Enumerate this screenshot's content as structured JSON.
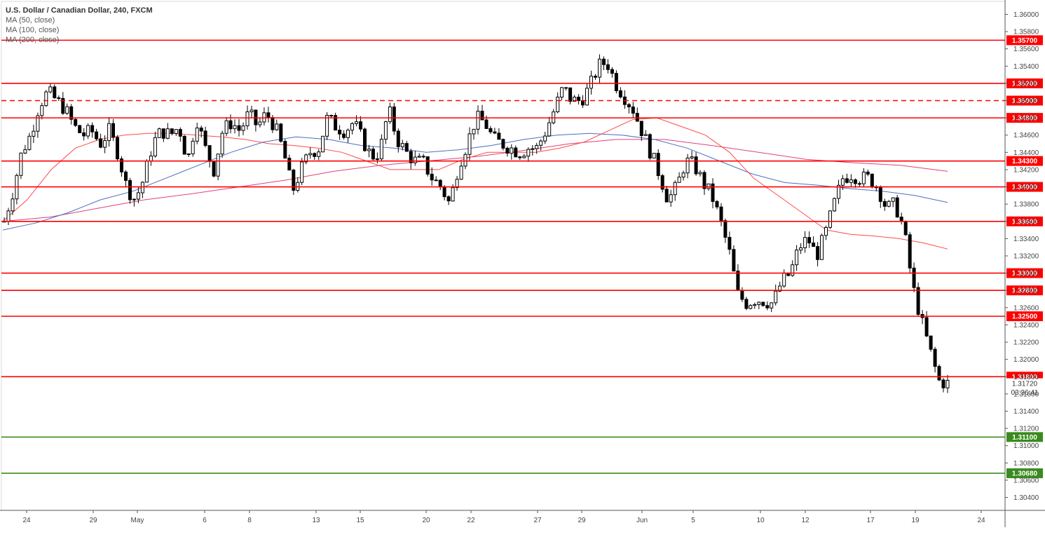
{
  "legend": {
    "title": "U.S. Dollar / Canadian Dollar, 240, FXCM",
    "ma50": "MA (50, close)",
    "ma100": "MA (100, close)",
    "ma200": "MA (200, close)"
  },
  "countdown": "03:36:41",
  "colors": {
    "resistance": "#ff0000",
    "support": "#3a8b1e",
    "ma50": "#ff4a4a",
    "ma100": "#4a6fbf",
    "ma200": "#e0407a",
    "candle": "#000000",
    "axis_text": "#444444"
  },
  "chart_data": {
    "type": "candlestick",
    "symbol": "U.S. Dollar / Canadian Dollar",
    "interval": "240",
    "source": "FXCM",
    "ylim": [
      1.3025,
      1.3615
    ],
    "y_ticks": [
      "1.36000",
      "1.35800",
      "1.35600",
      "1.35400",
      "1.35200",
      "1.35000",
      "1.34800",
      "1.34600",
      "1.34400",
      "1.34200",
      "1.34000",
      "1.33800",
      "1.33600",
      "1.33400",
      "1.33200",
      "1.33000",
      "1.32800",
      "1.32600",
      "1.32400",
      "1.32200",
      "1.32000",
      "1.31800",
      "1.31600",
      "1.31400",
      "1.31200",
      "1.31000",
      "1.30800",
      "1.30600",
      "1.30400"
    ],
    "x_ticks": [
      "24",
      "29",
      "May",
      "6",
      "8",
      "13",
      "15",
      "20",
      "22",
      "27",
      "29",
      "Jun",
      "5",
      "10",
      "12",
      "17",
      "19",
      "24"
    ],
    "last_price": "1.31720",
    "horizontal_lines": [
      {
        "label": "1.35700",
        "kind": "resistance",
        "style": "solid"
      },
      {
        "label": "1.35200",
        "kind": "resistance",
        "style": "solid"
      },
      {
        "label": "1.35000",
        "kind": "resistance",
        "style": "dashed"
      },
      {
        "label": "1.34800",
        "kind": "resistance",
        "style": "solid"
      },
      {
        "label": "1.34300",
        "kind": "resistance",
        "style": "solid"
      },
      {
        "label": "1.34000",
        "kind": "resistance",
        "style": "solid"
      },
      {
        "label": "1.33600",
        "kind": "resistance",
        "style": "solid"
      },
      {
        "label": "1.33000",
        "kind": "resistance",
        "style": "solid"
      },
      {
        "label": "1.32800",
        "kind": "resistance",
        "style": "solid"
      },
      {
        "label": "1.32500",
        "kind": "resistance",
        "style": "solid"
      },
      {
        "label": "1.31800",
        "kind": "resistance",
        "style": "solid"
      },
      {
        "label": "1.31100",
        "kind": "support",
        "style": "solid"
      },
      {
        "label": "1.30680",
        "kind": "support",
        "style": "solid"
      }
    ],
    "price_path": [
      1.336,
      1.3395,
      1.344,
      1.346,
      1.3495,
      1.351,
      1.35,
      1.349,
      1.347,
      1.346,
      1.3465,
      1.345,
      1.3465,
      1.344,
      1.34,
      1.3385,
      1.341,
      1.345,
      1.3465,
      1.346,
      1.347,
      1.343,
      1.348,
      1.3445,
      1.342,
      1.3465,
      1.3475,
      1.3465,
      1.3485,
      1.347,
      1.3485,
      1.347,
      1.344,
      1.3395,
      1.342,
      1.344,
      1.3445,
      1.348,
      1.347,
      1.3465,
      1.3475,
      1.3455,
      1.3435,
      1.344,
      1.349,
      1.3455,
      1.344,
      1.343,
      1.3428,
      1.341,
      1.34,
      1.338,
      1.3425,
      1.345,
      1.348,
      1.3475,
      1.3455,
      1.345,
      1.3445,
      1.344,
      1.3445,
      1.3445,
      1.3465,
      1.349,
      1.3515,
      1.35,
      1.35,
      1.3515,
      1.354,
      1.3545,
      1.352,
      1.3505,
      1.349,
      1.3465,
      1.344,
      1.3415,
      1.3385,
      1.34,
      1.343,
      1.3425,
      1.3405,
      1.339,
      1.336,
      1.3325,
      1.3275,
      1.3265,
      1.327,
      1.3268,
      1.3265,
      1.329,
      1.33,
      1.333,
      1.334,
      1.332,
      1.3345,
      1.338,
      1.341,
      1.3415,
      1.341,
      1.341,
      1.34,
      1.3375,
      1.338,
      1.335,
      1.3285,
      1.3245,
      1.321,
      1.3175,
      1.3172
    ],
    "price_path_note_units": "price",
    "ma50": [
      1.336,
      1.3385,
      1.342,
      1.3445,
      1.3455,
      1.346,
      1.3462,
      1.3462,
      1.346,
      1.3458,
      1.3455,
      1.345,
      1.3448,
      1.3445,
      1.344,
      1.343,
      1.342,
      1.342,
      1.342,
      1.3432,
      1.344,
      1.344,
      1.344,
      1.3445,
      1.3452,
      1.3465,
      1.3478,
      1.348,
      1.347,
      1.346,
      1.344,
      1.341,
      1.339,
      1.337,
      1.335,
      1.3345,
      1.3343,
      1.334,
      1.3335,
      1.3328
    ],
    "ma100": [
      1.335,
      1.3358,
      1.337,
      1.3385,
      1.3395,
      1.341,
      1.3425,
      1.344,
      1.3452,
      1.3458,
      1.3455,
      1.3448,
      1.3445,
      1.344,
      1.3443,
      1.3448,
      1.3455,
      1.346,
      1.3462,
      1.346,
      1.3455,
      1.3445,
      1.343,
      1.3415,
      1.3405,
      1.3402,
      1.3398,
      1.3395,
      1.339,
      1.3382
    ],
    "ma200": [
      1.336,
      1.3365,
      1.3375,
      1.3385,
      1.3392,
      1.34,
      1.3408,
      1.3418,
      1.3425,
      1.343,
      1.3435,
      1.3442,
      1.345,
      1.3455,
      1.3455,
      1.3448,
      1.344,
      1.3432,
      1.3428,
      1.3425,
      1.3418
    ]
  }
}
